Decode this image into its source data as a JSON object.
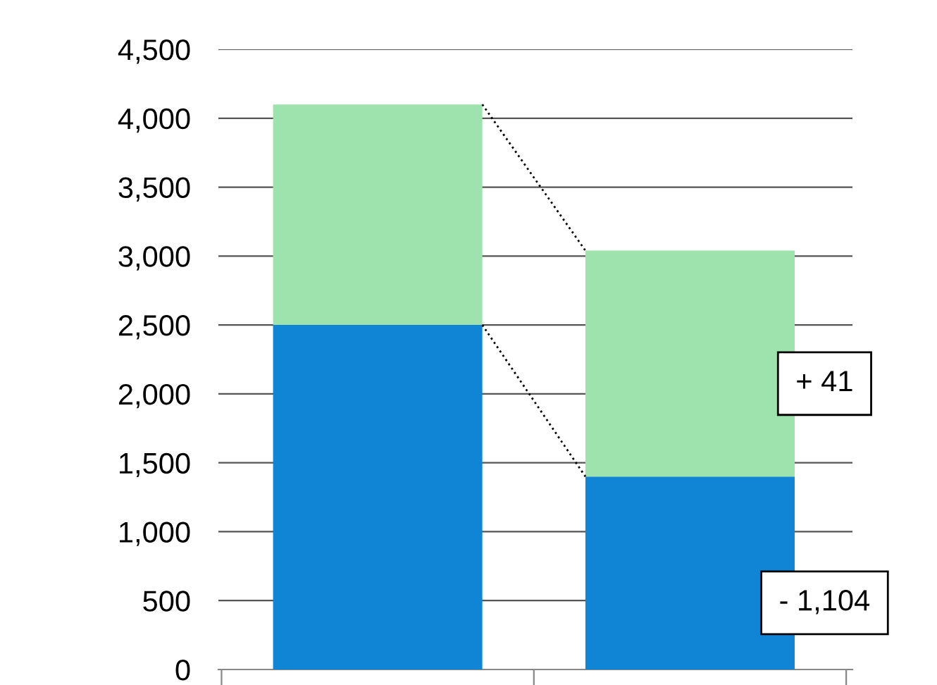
{
  "chart_data": {
    "type": "bar",
    "stacked": true,
    "categories": [
      null,
      null
    ],
    "series": [
      {
        "color": "#1085d6",
        "values": [
          2500,
          1400
        ]
      },
      {
        "color": "#9ee3ae",
        "values": [
          1600,
          1640
        ]
      }
    ],
    "ylim": [
      0,
      4500
    ],
    "yticks": [
      0,
      {
        "value": 500,
        "label": "500"
      },
      {
        "value": 1000,
        "label": "1,000"
      },
      {
        "value": 1500,
        "label": "1,500"
      },
      {
        "value": 2000,
        "label": "2,000"
      },
      {
        "value": 2500,
        "label": "2,500"
      },
      {
        "value": 3000,
        "label": "3,000"
      },
      {
        "value": 3500,
        "label": "3,500"
      },
      {
        "value": 4000,
        "label": "4,000"
      },
      {
        "value": 4500,
        "label": "4,500"
      }
    ],
    "grid": "y",
    "legend": false,
    "annotations": [
      "+ 41",
      "- 1,104"
    ]
  }
}
